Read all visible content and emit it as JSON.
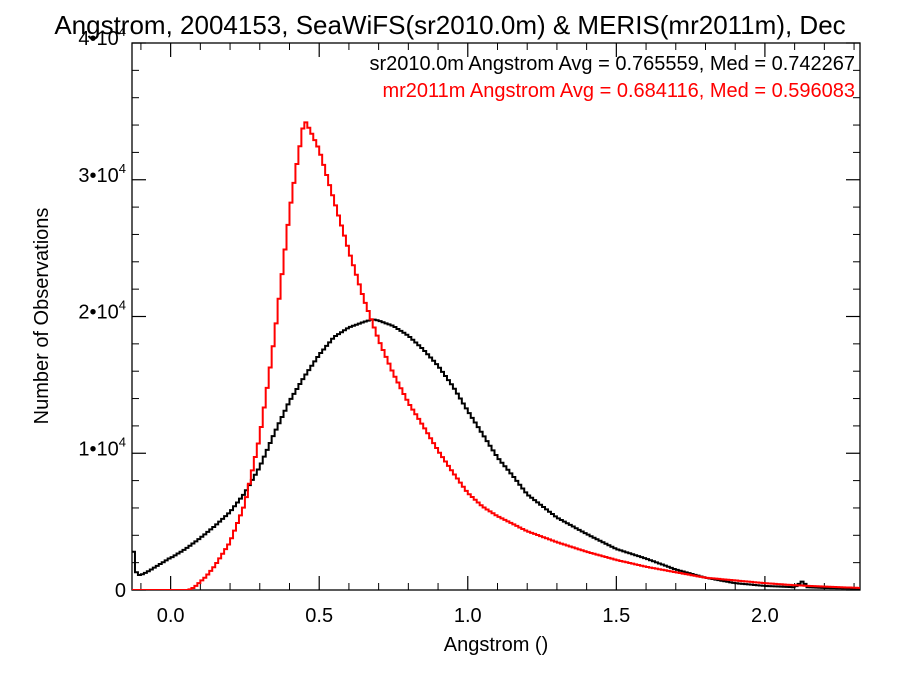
{
  "chart_data": {
    "type": "line",
    "title": "Angstrom, 2004153, SeaWiFS(sr2010.0m) & MERIS(mr2011m), Dec",
    "xlabel": "Angstrom ()",
    "ylabel": "Number of Observations",
    "xlim": [
      -0.13,
      2.32
    ],
    "ylim": [
      0,
      40000
    ],
    "x_ticks": [
      {
        "value": 0.0,
        "label": "0.0"
      },
      {
        "value": 0.5,
        "label": "0.5"
      },
      {
        "value": 1.0,
        "label": "1.0"
      },
      {
        "value": 1.5,
        "label": "1.5"
      },
      {
        "value": 2.0,
        "label": "2.0"
      }
    ],
    "y_ticks": [
      {
        "value": 0,
        "base": "0",
        "exp": ""
      },
      {
        "value": 10000,
        "base": "1•10",
        "exp": "4"
      },
      {
        "value": 20000,
        "base": "2•10",
        "exp": "4"
      },
      {
        "value": 30000,
        "base": "3•10",
        "exp": "4"
      },
      {
        "value": 40000,
        "base": "4•10",
        "exp": "4"
      }
    ],
    "grid": false,
    "legend_position": "top-right",
    "series": [
      {
        "name": "sr2010.0m Angstrom Avg = 0.765559, Med = 0.742267",
        "color": "#000000",
        "x": [
          -0.13,
          -0.125,
          -0.12,
          -0.11,
          -0.1,
          -0.08,
          -0.05,
          -0.02,
          -0.005,
          0.0,
          0.005,
          0.02,
          0.05,
          0.1,
          0.15,
          0.2,
          0.25,
          0.3,
          0.35,
          0.4,
          0.45,
          0.5,
          0.55,
          0.6,
          0.65,
          0.68,
          0.7,
          0.75,
          0.8,
          0.85,
          0.9,
          0.95,
          1.0,
          1.05,
          1.1,
          1.15,
          1.2,
          1.3,
          1.4,
          1.5,
          1.6,
          1.7,
          1.8,
          1.9,
          2.0,
          2.1,
          2.13,
          2.14,
          2.15,
          2.2,
          2.32
        ],
        "y": [
          6300,
          2800,
          1500,
          1100,
          1100,
          1300,
          1700,
          2100,
          2300,
          3400,
          2400,
          2600,
          3000,
          3800,
          4700,
          5700,
          7100,
          9000,
          11500,
          13800,
          15600,
          17200,
          18500,
          19200,
          19600,
          19800,
          19700,
          19300,
          18600,
          17600,
          16400,
          14900,
          13100,
          11400,
          9700,
          8400,
          7000,
          5300,
          4100,
          3000,
          2300,
          1500,
          900,
          500,
          300,
          200,
          700,
          200,
          200,
          150,
          100
        ]
      },
      {
        "name": "mr2011m Angstrom Avg = 0.684116, Med = 0.596083",
        "color": "#ff0000",
        "x": [
          -0.13,
          0.06,
          0.08,
          0.1,
          0.12,
          0.15,
          0.2,
          0.25,
          0.3,
          0.33,
          0.35,
          0.38,
          0.4,
          0.42,
          0.45,
          0.47,
          0.5,
          0.55,
          0.6,
          0.65,
          0.7,
          0.75,
          0.8,
          0.85,
          0.9,
          0.95,
          1.0,
          1.05,
          1.1,
          1.2,
          1.3,
          1.4,
          1.5,
          1.6,
          1.7,
          1.8,
          1.9,
          2.0,
          2.1,
          2.2,
          2.32
        ],
        "y": [
          0,
          0,
          200,
          600,
          1000,
          1800,
          3500,
          6300,
          11200,
          15500,
          18600,
          24000,
          27600,
          30500,
          34400,
          33600,
          32200,
          28500,
          24800,
          21300,
          18300,
          15800,
          13700,
          12000,
          10200,
          8600,
          7100,
          6100,
          5400,
          4300,
          3500,
          2800,
          2200,
          1700,
          1300,
          900,
          700,
          500,
          350,
          250,
          150
        ]
      }
    ]
  }
}
